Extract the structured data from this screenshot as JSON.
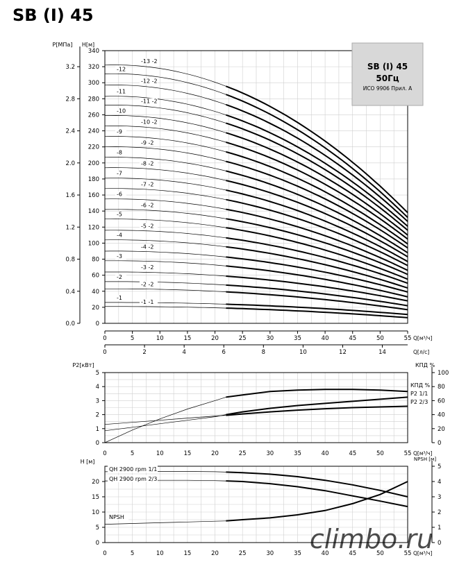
{
  "page": {
    "title": "SB (I) 45"
  },
  "watermark": "climbo.ru",
  "chart_data": [
    {
      "id": "head-curves",
      "type": "line",
      "info_box": {
        "title": "SB (I) 45",
        "freq": "50Гц",
        "note": "ИСО 9906 Прил. А"
      },
      "axes": {
        "left_outer": {
          "label": "P[МПа]",
          "range": [
            0,
            3.4
          ],
          "ticks": [
            "0.0",
            "0.4",
            "0.8",
            "1.2",
            "1.6",
            "2.0",
            "2.4",
            "2.8",
            "3.2"
          ]
        },
        "left_inner": {
          "label": "H[м]",
          "range": [
            0,
            340
          ],
          "ticks": [
            0,
            20,
            40,
            60,
            80,
            100,
            120,
            140,
            160,
            180,
            200,
            220,
            240,
            260,
            280,
            300,
            320,
            340
          ]
        },
        "x_q": {
          "label": "Q[м³/ч]",
          "range": [
            0,
            55
          ],
          "ticks": [
            0,
            5,
            10,
            15,
            20,
            25,
            30,
            35,
            40,
            45,
            50,
            55
          ]
        },
        "x_ls": {
          "label": "Q[л/с]",
          "range": [
            0,
            15.28
          ],
          "ticks": [
            0,
            2,
            4,
            6,
            8,
            10,
            12,
            14
          ]
        },
        "grid": true
      },
      "bold_range": [
        22,
        55
      ],
      "series": [
        {
          "name": "-1 -1",
          "h0": 21,
          "h55": 7
        },
        {
          "name": "-1",
          "h0": 26,
          "h55": 11
        },
        {
          "name": "-2 -2",
          "h0": 43,
          "h55": 17
        },
        {
          "name": "-2",
          "h0": 52,
          "h55": 22
        },
        {
          "name": "-3 -2",
          "h0": 64,
          "h55": 28
        },
        {
          "name": "-3",
          "h0": 78,
          "h55": 33
        },
        {
          "name": "-4 -2",
          "h0": 90,
          "h55": 39
        },
        {
          "name": "-4",
          "h0": 104,
          "h55": 44
        },
        {
          "name": "-5 -2",
          "h0": 116,
          "h55": 50
        },
        {
          "name": "-5",
          "h0": 130,
          "h55": 55
        },
        {
          "name": "-6 -2",
          "h0": 142,
          "h55": 61
        },
        {
          "name": "-6",
          "h0": 155,
          "h55": 66
        },
        {
          "name": "-7 -2",
          "h0": 168,
          "h55": 72
        },
        {
          "name": "-7",
          "h0": 181,
          "h55": 77
        },
        {
          "name": "-8 -2",
          "h0": 194,
          "h55": 83
        },
        {
          "name": "-8",
          "h0": 207,
          "h55": 88
        },
        {
          "name": "-9 -2",
          "h0": 220,
          "h55": 94
        },
        {
          "name": "-9",
          "h0": 233,
          "h55": 99
        },
        {
          "name": "-10 -2",
          "h0": 246,
          "h55": 105
        },
        {
          "name": "-10",
          "h0": 259,
          "h55": 110
        },
        {
          "name": "-11 -2",
          "h0": 272,
          "h55": 116
        },
        {
          "name": "-11",
          "h0": 283,
          "h55": 121
        },
        {
          "name": "-12 -2",
          "h0": 297,
          "h55": 127
        },
        {
          "name": "-12",
          "h0": 311,
          "h55": 132
        },
        {
          "name": "-13 -2",
          "h0": 322,
          "h55": 138
        }
      ]
    },
    {
      "id": "power-efficiency",
      "type": "line",
      "axes": {
        "left": {
          "label": "P2[кВт]",
          "range": [
            0,
            5
          ],
          "ticks": [
            0,
            1,
            2,
            3,
            4,
            5
          ]
        },
        "right": {
          "label": "КПД %",
          "range": [
            0,
            100
          ],
          "ticks": [
            0,
            20,
            40,
            60,
            80,
            100
          ]
        },
        "x": {
          "label": "Q[м³/ч]",
          "range": [
            0,
            55
          ],
          "ticks": [
            0,
            5,
            10,
            15,
            20,
            25,
            30,
            35,
            40,
            45,
            50,
            55
          ]
        },
        "grid": true
      },
      "bold_range": [
        22,
        55
      ],
      "series": [
        {
          "name": "КПД %",
          "axis": "right",
          "x": [
            0,
            5,
            10,
            15,
            20,
            22,
            25,
            30,
            35,
            40,
            45,
            50,
            55
          ],
          "y": [
            0,
            18,
            34,
            48,
            60,
            65,
            68,
            73,
            75,
            76,
            76,
            75,
            73
          ]
        },
        {
          "name": "P2 1/1",
          "axis": "left",
          "x": [
            0,
            5,
            10,
            15,
            20,
            22,
            25,
            30,
            35,
            40,
            45,
            50,
            55
          ],
          "y": [
            0.85,
            1.1,
            1.35,
            1.6,
            1.85,
            2.0,
            2.2,
            2.45,
            2.65,
            2.8,
            2.95,
            3.1,
            3.25
          ]
        },
        {
          "name": "P2 2/3",
          "axis": "left",
          "x": [
            0,
            5,
            10,
            15,
            20,
            22,
            25,
            30,
            35,
            40,
            45,
            50,
            55
          ],
          "y": [
            1.3,
            1.45,
            1.6,
            1.75,
            1.9,
            1.95,
            2.05,
            2.2,
            2.32,
            2.42,
            2.5,
            2.55,
            2.6
          ]
        }
      ]
    },
    {
      "id": "single-stage-npsh",
      "type": "line",
      "axes": {
        "left": {
          "label": "H [м]",
          "range": [
            0,
            25
          ],
          "ticks": [
            0,
            5,
            10,
            15,
            20
          ]
        },
        "right": {
          "label": "NPSH [м]",
          "range": [
            0,
            5
          ],
          "ticks": [
            0,
            1,
            2,
            3,
            4,
            5
          ]
        },
        "x": {
          "label": "Q[м³/ч]",
          "range": [
            0,
            55
          ],
          "ticks": [
            0,
            5,
            10,
            15,
            20,
            25,
            30,
            35,
            40,
            45,
            50,
            55
          ]
        },
        "grid": true
      },
      "bold_range": [
        22,
        55
      ],
      "series": [
        {
          "name": "QH 2900 rpm 1/1",
          "axis": "left",
          "x": [
            0,
            5,
            10,
            15,
            20,
            22,
            25,
            30,
            35,
            40,
            45,
            50,
            55
          ],
          "y": [
            23.2,
            23.3,
            23.3,
            23.3,
            23.2,
            23.1,
            22.9,
            22.4,
            21.6,
            20.4,
            18.9,
            17.1,
            15.0
          ]
        },
        {
          "name": "QH 2900 rpm 2/3",
          "axis": "left",
          "x": [
            0,
            5,
            10,
            15,
            20,
            22,
            25,
            30,
            35,
            40,
            45,
            50,
            55
          ],
          "y": [
            20.2,
            20.3,
            20.4,
            20.4,
            20.3,
            20.2,
            20.0,
            19.3,
            18.3,
            17.0,
            15.3,
            13.6,
            11.8
          ]
        },
        {
          "name": "NPSH",
          "axis": "right",
          "x": [
            0,
            5,
            10,
            15,
            20,
            22,
            25,
            30,
            35,
            40,
            45,
            50,
            55
          ],
          "y": [
            1.2,
            1.25,
            1.3,
            1.35,
            1.4,
            1.42,
            1.5,
            1.62,
            1.82,
            2.1,
            2.55,
            3.15,
            4.0
          ]
        }
      ]
    }
  ]
}
